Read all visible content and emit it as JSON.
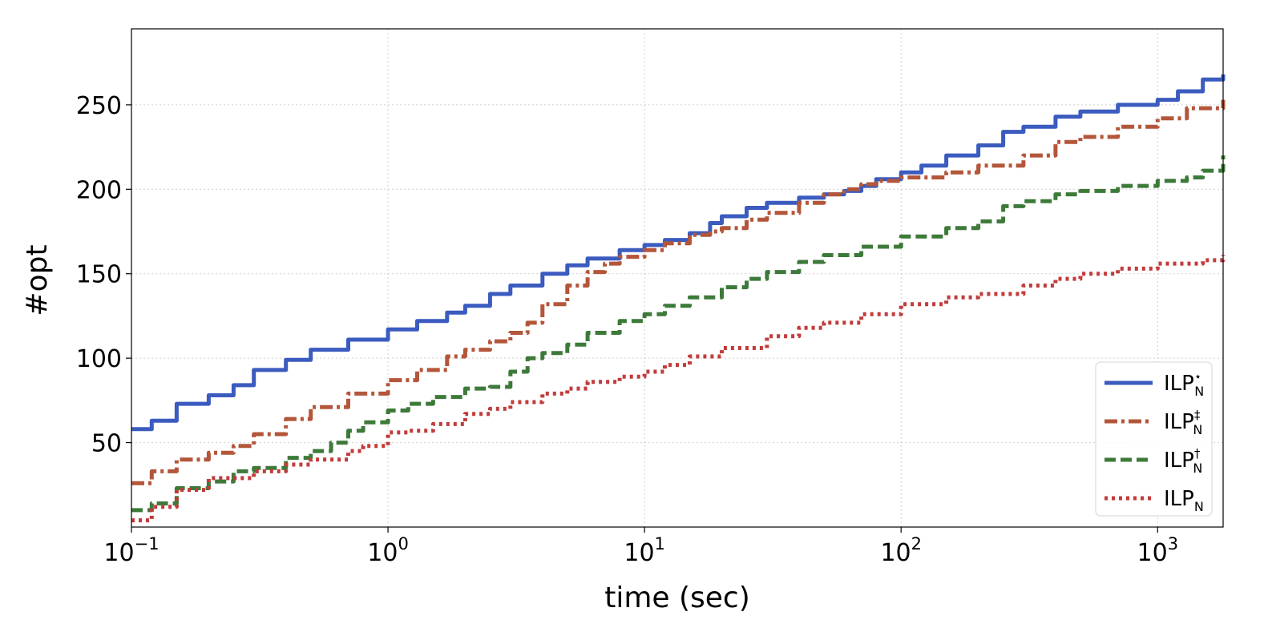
{
  "chart_data": {
    "type": "line",
    "title": "",
    "xlabel": "time (sec)",
    "ylabel": "#opt",
    "x_scale": "log",
    "xlim": [
      0.1,
      1800
    ],
    "ylim": [
      0,
      295
    ],
    "grid": true,
    "legend_position": "lower-right",
    "x_ticks": [
      {
        "value": 0.1,
        "base": "10",
        "exp": "−1"
      },
      {
        "value": 1,
        "base": "10",
        "exp": "0"
      },
      {
        "value": 10,
        "base": "10",
        "exp": "1"
      },
      {
        "value": 100,
        "base": "10",
        "exp": "2"
      },
      {
        "value": 1000,
        "base": "10",
        "exp": "3"
      }
    ],
    "y_ticks": [
      {
        "value": 50,
        "label": "50"
      },
      {
        "value": 100,
        "label": "100"
      },
      {
        "value": 150,
        "label": "150"
      },
      {
        "value": 200,
        "label": "200"
      },
      {
        "value": 250,
        "label": "250"
      }
    ],
    "series": [
      {
        "name": "ILP",
        "name_sub": "N",
        "name_sup": "⋆",
        "color": "#3b5bbf",
        "style": "solid",
        "x": [
          0.1,
          0.12,
          0.15,
          0.2,
          0.25,
          0.3,
          0.4,
          0.5,
          0.7,
          1,
          1.3,
          1.7,
          2,
          2.5,
          3,
          4,
          5,
          6,
          8,
          10,
          12,
          15,
          18,
          20,
          25,
          30,
          40,
          50,
          60,
          70,
          80,
          100,
          120,
          150,
          200,
          250,
          300,
          400,
          500,
          700,
          1000,
          1200,
          1500,
          1800
        ],
        "y": [
          58,
          63,
          73,
          78,
          84,
          93,
          99,
          105,
          111,
          117,
          122,
          127,
          131,
          138,
          143,
          150,
          155,
          159,
          164,
          167,
          170,
          174,
          180,
          184,
          189,
          192,
          195,
          197,
          199,
          202,
          206,
          210,
          214,
          220,
          226,
          234,
          237,
          243,
          246,
          250,
          253,
          258,
          265,
          268
        ]
      },
      {
        "name": "ILP",
        "name_sub": "N",
        "name_sup": "‡",
        "color": "#b3563a",
        "style": "dashdot",
        "x": [
          0.1,
          0.12,
          0.15,
          0.2,
          0.25,
          0.3,
          0.4,
          0.5,
          0.7,
          1,
          1.3,
          1.7,
          2,
          2.5,
          3,
          3.5,
          4,
          5,
          6,
          7,
          8,
          10,
          12,
          15,
          18,
          20,
          25,
          30,
          40,
          50,
          60,
          70,
          80,
          100,
          150,
          200,
          300,
          400,
          500,
          700,
          1000,
          1300,
          1800
        ],
        "y": [
          26,
          33,
          40,
          44,
          48,
          55,
          64,
          71,
          79,
          87,
          93,
          101,
          105,
          110,
          115,
          121,
          132,
          143,
          151,
          156,
          160,
          164,
          168,
          173,
          175,
          177,
          182,
          186,
          192,
          197,
          200,
          203,
          205,
          207,
          210,
          214,
          220,
          228,
          231,
          237,
          242,
          248,
          253
        ]
      },
      {
        "name": "ILP",
        "name_sub": "N",
        "name_sup": "†",
        "color": "#3d7a3a",
        "style": "dashed",
        "x": [
          0.1,
          0.12,
          0.15,
          0.2,
          0.25,
          0.3,
          0.4,
          0.5,
          0.6,
          0.7,
          0.8,
          1,
          1.2,
          1.5,
          2,
          2.5,
          3,
          3.5,
          4,
          5,
          6,
          8,
          10,
          12,
          15,
          20,
          25,
          30,
          40,
          50,
          70,
          100,
          150,
          200,
          250,
          300,
          400,
          500,
          700,
          1000,
          1300,
          1500,
          1800
        ],
        "y": [
          10,
          14,
          23,
          27,
          33,
          35,
          41,
          45,
          50,
          57,
          62,
          69,
          73,
          77,
          82,
          83,
          92,
          100,
          103,
          108,
          115,
          122,
          126,
          131,
          136,
          142,
          147,
          151,
          157,
          161,
          166,
          172,
          177,
          181,
          190,
          193,
          197,
          199,
          202,
          205,
          207,
          211,
          220
        ]
      },
      {
        "name": "ILP",
        "name_sub": "N",
        "name_sup": "",
        "color": "#c23b3b",
        "style": "dotted",
        "x": [
          0.1,
          0.12,
          0.15,
          0.2,
          0.3,
          0.4,
          0.5,
          0.7,
          0.8,
          1,
          1.2,
          1.5,
          2,
          2.5,
          3,
          4,
          5,
          6,
          8,
          10,
          12,
          15,
          20,
          30,
          40,
          50,
          70,
          100,
          150,
          200,
          300,
          400,
          500,
          700,
          1000,
          1500,
          1800
        ],
        "y": [
          4,
          12,
          22,
          29,
          33,
          37,
          40,
          45,
          48,
          56,
          57,
          61,
          67,
          70,
          74,
          79,
          82,
          86,
          89,
          92,
          96,
          101,
          106,
          113,
          118,
          121,
          126,
          132,
          136,
          138,
          143,
          147,
          150,
          153,
          156,
          158,
          161
        ]
      }
    ]
  }
}
